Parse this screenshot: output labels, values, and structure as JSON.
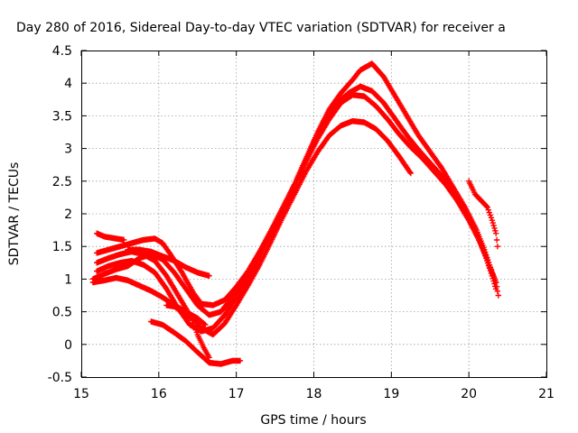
{
  "chart_data": {
    "type": "scatter",
    "title": "Day 280 of 2016, Sidereal Day-to-day VTEC variation (SDTVAR) for receiver a",
    "xlabel": "GPS time / hours",
    "ylabel": "SDTVAR / TECUs",
    "xlim": [
      15,
      21
    ],
    "ylim": [
      -0.5,
      4.5
    ],
    "xticks": [
      15,
      16,
      17,
      18,
      19,
      20,
      21
    ],
    "yticks": [
      -0.5,
      0,
      0.5,
      1,
      1.5,
      2,
      2.5,
      3,
      3.5,
      4,
      4.5
    ],
    "xtick_labels": [
      "15",
      "16",
      "17",
      "18",
      "19",
      "20",
      "21"
    ],
    "ytick_labels": [
      "-0.5",
      "0",
      "0.5",
      "1",
      "1.5",
      "2",
      "2.5",
      "3",
      "3.5",
      "4",
      "4.5"
    ],
    "grid": true,
    "marker": "plus",
    "color": "#ff0000",
    "series": [
      {
        "points": [
          [
            15.2,
            1.4
          ],
          [
            15.35,
            1.45
          ],
          [
            15.5,
            1.5
          ],
          [
            15.65,
            1.55
          ],
          [
            15.8,
            1.6
          ],
          [
            15.95,
            1.62
          ],
          [
            16.05,
            1.55
          ],
          [
            16.15,
            1.38
          ],
          [
            16.3,
            1.1
          ],
          [
            16.45,
            0.78
          ],
          [
            16.55,
            0.62
          ],
          [
            16.7,
            0.6
          ],
          [
            16.85,
            0.68
          ],
          [
            17.0,
            0.88
          ],
          [
            17.15,
            1.12
          ],
          [
            17.3,
            1.42
          ],
          [
            17.45,
            1.75
          ],
          [
            17.6,
            2.1
          ],
          [
            17.75,
            2.45
          ],
          [
            17.9,
            2.85
          ],
          [
            18.05,
            3.25
          ],
          [
            18.2,
            3.6
          ],
          [
            18.35,
            3.85
          ],
          [
            18.5,
            4.05
          ],
          [
            18.6,
            4.2
          ],
          [
            18.75,
            4.3
          ],
          [
            18.9,
            4.1
          ],
          [
            19.05,
            3.8
          ],
          [
            19.2,
            3.5
          ],
          [
            19.35,
            3.2
          ],
          [
            19.5,
            2.95
          ],
          [
            19.65,
            2.7
          ],
          [
            19.8,
            2.4
          ],
          [
            19.95,
            2.1
          ],
          [
            20.1,
            1.75
          ],
          [
            20.2,
            1.45
          ],
          [
            20.3,
            1.1
          ],
          [
            20.35,
            0.95
          ]
        ]
      },
      {
        "points": [
          [
            15.15,
            1.0
          ],
          [
            15.3,
            1.08
          ],
          [
            15.45,
            1.15
          ],
          [
            15.6,
            1.2
          ],
          [
            15.75,
            1.32
          ],
          [
            15.9,
            1.38
          ],
          [
            16.05,
            1.3
          ],
          [
            16.2,
            1.1
          ],
          [
            16.35,
            0.85
          ],
          [
            16.5,
            0.6
          ],
          [
            16.65,
            0.45
          ],
          [
            16.8,
            0.5
          ],
          [
            16.95,
            0.72
          ],
          [
            17.1,
            1.0
          ],
          [
            17.25,
            1.3
          ],
          [
            17.4,
            1.62
          ],
          [
            17.55,
            1.95
          ],
          [
            17.7,
            2.3
          ],
          [
            17.85,
            2.7
          ],
          [
            18.0,
            3.1
          ],
          [
            18.15,
            3.45
          ],
          [
            18.3,
            3.7
          ],
          [
            18.45,
            3.85
          ],
          [
            18.6,
            3.95
          ],
          [
            18.75,
            3.88
          ],
          [
            18.9,
            3.7
          ],
          [
            19.05,
            3.45
          ],
          [
            19.2,
            3.2
          ],
          [
            19.35,
            2.98
          ],
          [
            19.5,
            2.78
          ],
          [
            19.65,
            2.58
          ],
          [
            19.8,
            2.32
          ],
          [
            19.95,
            2.02
          ],
          [
            20.1,
            1.7
          ],
          [
            20.2,
            1.4
          ],
          [
            20.3,
            1.05
          ],
          [
            20.35,
            0.85
          ]
        ]
      },
      {
        "points": [
          [
            15.2,
            1.12
          ],
          [
            15.35,
            1.2
          ],
          [
            15.5,
            1.25
          ],
          [
            15.65,
            1.28
          ],
          [
            15.8,
            1.22
          ],
          [
            15.95,
            1.1
          ],
          [
            16.1,
            0.85
          ],
          [
            16.25,
            0.55
          ],
          [
            16.4,
            0.3
          ],
          [
            16.55,
            0.2
          ],
          [
            16.7,
            0.25
          ],
          [
            16.85,
            0.45
          ],
          [
            17.0,
            0.72
          ],
          [
            17.15,
            1.02
          ],
          [
            17.3,
            1.35
          ],
          [
            17.45,
            1.7
          ],
          [
            17.6,
            2.05
          ],
          [
            17.75,
            2.42
          ],
          [
            17.9,
            2.8
          ],
          [
            18.05,
            3.15
          ],
          [
            18.2,
            3.45
          ],
          [
            18.35,
            3.7
          ],
          [
            18.5,
            3.82
          ],
          [
            18.65,
            3.8
          ],
          [
            18.8,
            3.65
          ],
          [
            18.95,
            3.45
          ],
          [
            19.1,
            3.22
          ],
          [
            19.25,
            3.02
          ],
          [
            19.4,
            2.85
          ],
          [
            19.55,
            2.65
          ],
          [
            19.7,
            2.45
          ],
          [
            19.85,
            2.2
          ],
          [
            20.0,
            1.9
          ],
          [
            20.15,
            1.55
          ],
          [
            20.25,
            1.25
          ],
          [
            20.35,
            0.95
          ],
          [
            20.38,
            0.75
          ]
        ]
      },
      {
        "points": [
          [
            15.2,
            1.25
          ],
          [
            15.35,
            1.32
          ],
          [
            15.5,
            1.38
          ],
          [
            15.65,
            1.42
          ],
          [
            15.8,
            1.38
          ],
          [
            15.95,
            1.28
          ],
          [
            16.1,
            1.05
          ],
          [
            16.25,
            0.75
          ],
          [
            16.4,
            0.45
          ],
          [
            16.55,
            0.25
          ],
          [
            16.7,
            0.15
          ],
          [
            16.85,
            0.32
          ],
          [
            17.0,
            0.6
          ],
          [
            17.15,
            0.9
          ],
          [
            17.3,
            1.22
          ],
          [
            17.45,
            1.58
          ],
          [
            17.6,
            1.95
          ],
          [
            17.75,
            2.3
          ],
          [
            17.9,
            2.65
          ],
          [
            18.05,
            2.95
          ],
          [
            18.2,
            3.2
          ],
          [
            18.35,
            3.35
          ],
          [
            18.5,
            3.42
          ],
          [
            18.65,
            3.4
          ],
          [
            18.8,
            3.3
          ],
          [
            18.95,
            3.12
          ],
          [
            19.1,
            2.88
          ],
          [
            19.25,
            2.62
          ]
        ]
      },
      {
        "points": [
          [
            15.15,
            0.95
          ],
          [
            15.3,
            0.98
          ],
          [
            15.45,
            1.02
          ],
          [
            15.6,
            0.98
          ],
          [
            15.75,
            0.9
          ],
          [
            15.9,
            0.82
          ],
          [
            16.05,
            0.72
          ],
          [
            16.2,
            0.6
          ],
          [
            16.35,
            0.5
          ],
          [
            16.5,
            0.4
          ],
          [
            16.6,
            0.3
          ]
        ]
      },
      {
        "points": [
          [
            15.2,
            1.7
          ],
          [
            15.3,
            1.65
          ],
          [
            15.45,
            1.62
          ],
          [
            15.55,
            1.6
          ]
        ]
      },
      {
        "points": [
          [
            15.6,
            1.45
          ],
          [
            15.75,
            1.45
          ],
          [
            15.9,
            1.42
          ],
          [
            16.05,
            1.35
          ],
          [
            16.2,
            1.28
          ],
          [
            16.35,
            1.18
          ],
          [
            16.5,
            1.1
          ],
          [
            16.65,
            1.05
          ]
        ]
      },
      {
        "points": [
          [
            15.9,
            0.35
          ],
          [
            16.05,
            0.3
          ],
          [
            16.2,
            0.18
          ],
          [
            16.35,
            0.05
          ],
          [
            16.5,
            -0.12
          ],
          [
            16.65,
            -0.28
          ],
          [
            16.8,
            -0.3
          ],
          [
            16.95,
            -0.25
          ],
          [
            17.05,
            -0.25
          ]
        ]
      },
      {
        "points": [
          [
            16.1,
            0.6
          ],
          [
            16.2,
            0.58
          ],
          [
            16.3,
            0.5
          ],
          [
            16.42,
            0.4
          ],
          [
            16.5,
            0.15
          ],
          [
            16.58,
            -0.05
          ],
          [
            16.65,
            -0.2
          ]
        ]
      },
      {
        "points": [
          [
            20.0,
            2.5
          ],
          [
            20.08,
            2.3
          ],
          [
            20.16,
            2.2
          ],
          [
            20.24,
            2.1
          ],
          [
            20.3,
            1.9
          ],
          [
            20.35,
            1.7
          ],
          [
            20.37,
            1.5
          ]
        ]
      }
    ]
  }
}
